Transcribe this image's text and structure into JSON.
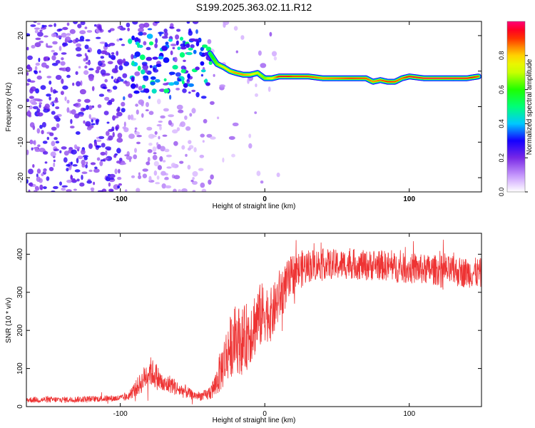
{
  "title": "S199.2025.363.02.11.R12",
  "chart_data": [
    {
      "type": "heatmap",
      "name": "spectrogram",
      "xlabel": "Height of straight line (km)",
      "ylabel": "Frequency (Hz)",
      "xlim": [
        -165,
        150
      ],
      "ylim": [
        -24,
        24
      ],
      "x_ticks": [
        -100,
        0,
        100
      ],
      "y_ticks": [
        -20,
        -10,
        0,
        10,
        20
      ],
      "y_tick_labels": [
        "-20",
        "-10",
        "0",
        "10",
        "20"
      ],
      "ridge": {
        "description": "Dominant frequency ridge (Hz) vs height",
        "x": [
          -38,
          -33,
          -28,
          -24,
          -20,
          -15,
          -10,
          -5,
          0,
          5,
          10,
          15,
          20,
          30,
          40,
          50,
          60,
          70,
          75,
          80,
          85,
          90,
          95,
          100,
          110,
          120,
          130,
          140,
          148
        ],
        "freq": [
          15,
          12,
          11,
          10,
          9.5,
          9,
          9,
          9.5,
          8,
          8,
          8.5,
          8.5,
          8.5,
          8.5,
          8,
          8,
          8,
          8,
          7,
          7.5,
          7,
          7,
          8,
          8.5,
          8,
          8,
          8,
          8,
          8.5
        ],
        "amplitude": [
          0.55,
          0.65,
          0.75,
          0.8,
          0.85,
          0.85,
          0.8,
          0.7,
          0.65,
          0.75,
          0.95,
          0.95,
          0.9,
          0.9,
          0.85,
          0.88,
          0.92,
          0.9,
          0.85,
          0.88,
          0.92,
          0.9,
          0.88,
          0.95,
          0.97,
          0.97,
          0.96,
          0.95,
          0.9
        ]
      },
      "colorbar": {
        "label": "Normalized spectral amplitude",
        "range": [
          0,
          1
        ],
        "ticks": [
          0.0,
          0.2,
          0.4,
          0.6,
          0.8
        ],
        "tick_labels": [
          "0.0",
          "0.2",
          "0.4",
          "0.6",
          "0.8"
        ],
        "colors": [
          "#ffffff",
          "#9b4dff",
          "#3300ff",
          "#0000ff",
          "#00ffff",
          "#00ff66",
          "#00ff00",
          "#ccff00",
          "#ffff00",
          "#ff8000",
          "#ff0000",
          "#ff0080"
        ]
      }
    },
    {
      "type": "line",
      "name": "snr",
      "xlabel": "Height of straight line (km)",
      "ylabel": "SNR (10 * v/v)",
      "xlim": [
        -165,
        150
      ],
      "ylim": [
        0,
        455
      ],
      "x_ticks": [
        -100,
        0,
        100
      ],
      "y_ticks": [
        0,
        100,
        200,
        300,
        400
      ],
      "y_tick_labels": [
        "0",
        "100",
        "200",
        "300",
        "400"
      ],
      "color": "#ee3333",
      "series": [
        {
          "name": "SNR",
          "description": "Mean trend; plotted signal is noisy around this trend",
          "x": [
            -165,
            -140,
            -120,
            -100,
            -95,
            -90,
            -85,
            -80,
            -75,
            -70,
            -65,
            -60,
            -55,
            -50,
            -45,
            -40,
            -35,
            -30,
            -25,
            -20,
            -15,
            -10,
            -5,
            0,
            5,
            10,
            15,
            20,
            25,
            30,
            40,
            50,
            60,
            70,
            80,
            90,
            100,
            110,
            120,
            130,
            140,
            150
          ],
          "values": [
            18,
            18,
            20,
            22,
            25,
            45,
            65,
            95,
            80,
            55,
            60,
            45,
            40,
            30,
            28,
            30,
            50,
            100,
            150,
            180,
            170,
            200,
            230,
            250,
            240,
            290,
            320,
            350,
            360,
            370,
            375,
            372,
            375,
            370,
            372,
            365,
            362,
            360,
            358,
            355,
            352,
            350
          ],
          "noise_amp": [
            8,
            8,
            8,
            9,
            10,
            20,
            30,
            40,
            35,
            25,
            25,
            20,
            18,
            12,
            12,
            15,
            30,
            60,
            80,
            90,
            90,
            90,
            90,
            80,
            70,
            70,
            60,
            55,
            50,
            45,
            40,
            40,
            40,
            40,
            40,
            40,
            40,
            40,
            40,
            40,
            40,
            40
          ]
        }
      ]
    }
  ]
}
